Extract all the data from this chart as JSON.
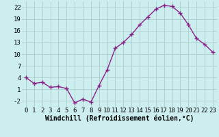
{
  "x": [
    0,
    1,
    2,
    3,
    4,
    5,
    6,
    7,
    8,
    9,
    10,
    11,
    12,
    13,
    14,
    15,
    16,
    17,
    18,
    19,
    20,
    21,
    22,
    23
  ],
  "y": [
    4,
    2.5,
    2.8,
    1.5,
    1.7,
    1.2,
    -2.5,
    -1.5,
    -2.3,
    2,
    6,
    11.5,
    13,
    15,
    17.5,
    19.5,
    21.5,
    22.5,
    22.2,
    20.5,
    17.5,
    14,
    12.5,
    10.5
  ],
  "line_color": "#882288",
  "marker": "+",
  "background_color": "#cceeee",
  "grid_color": "#aacccc",
  "xlabel": "Windchill (Refroidissement éolien,°C)",
  "xlabel_fontsize": 7,
  "yticks": [
    -2,
    1,
    4,
    7,
    10,
    13,
    16,
    19,
    22
  ],
  "xticks": [
    0,
    1,
    2,
    3,
    4,
    5,
    6,
    7,
    8,
    9,
    10,
    11,
    12,
    13,
    14,
    15,
    16,
    17,
    18,
    19,
    20,
    21,
    22,
    23
  ],
  "ylim": [
    -3.5,
    23.5
  ],
  "xlim": [
    -0.5,
    23.5
  ],
  "tick_fontsize": 6.5,
  "line_width": 1.0,
  "marker_size": 4,
  "marker_edge_width": 1.0
}
